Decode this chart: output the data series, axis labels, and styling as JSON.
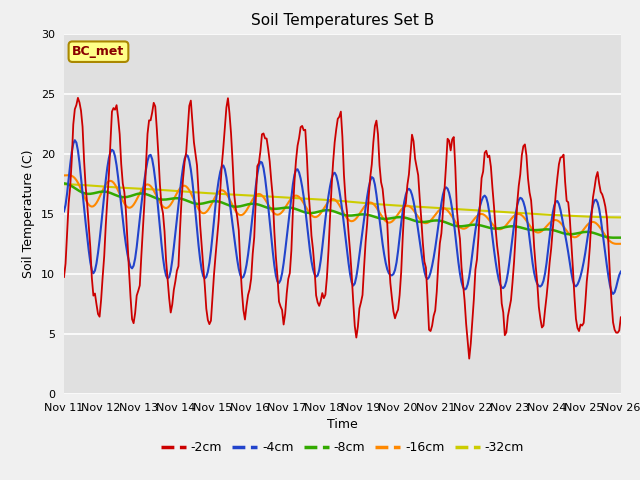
{
  "title": "Soil Temperatures Set B",
  "xlabel": "Time",
  "ylabel": "Soil Temperature (C)",
  "ylim": [
    0,
    30
  ],
  "annotation": "BC_met",
  "tick_labels": [
    "Nov 11",
    "Nov 12",
    "Nov 13",
    "Nov 14",
    "Nov 15",
    "Nov 16",
    "Nov 17",
    "Nov 18",
    "Nov 19",
    "Nov 20",
    "Nov 21",
    "Nov 22",
    "Nov 23",
    "Nov 24",
    "Nov 25",
    "Nov 26"
  ],
  "legend": [
    "-2cm",
    "-4cm",
    "-8cm",
    "-16cm",
    "-32cm"
  ],
  "colors": [
    "#cc0000",
    "#2244cc",
    "#33aa00",
    "#ff8800",
    "#cccc00"
  ],
  "bg_color": "#e0e0e0",
  "fig_bg": "#f0f0f0",
  "n_points": 361,
  "hours": 360
}
